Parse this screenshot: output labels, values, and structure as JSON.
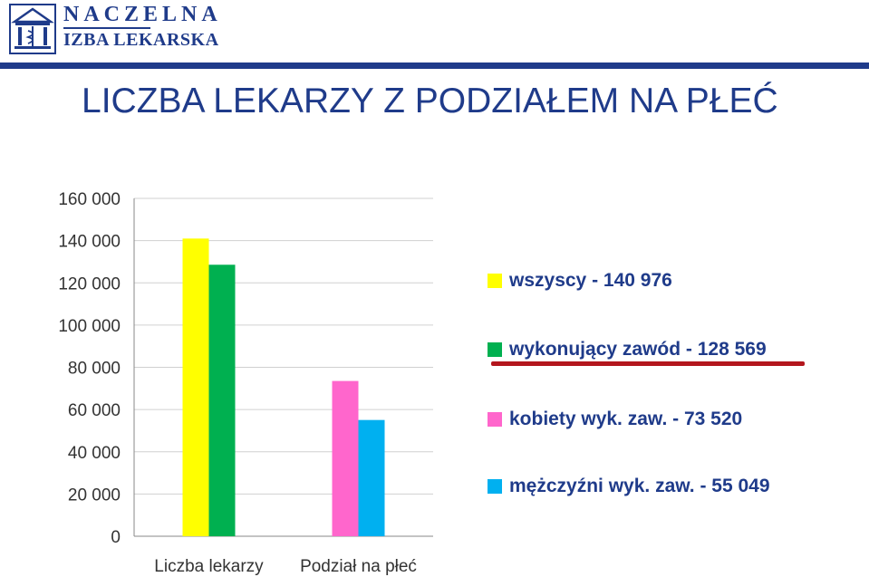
{
  "header": {
    "logo_line1": "NACZELNA",
    "logo_line2": "IZBA LEKARSKA",
    "brand_color": "#1f3b8a"
  },
  "title": "LICZBA LEKARZY Z PODZIAŁEM NA PŁEĆ",
  "chart_data": {
    "type": "bar",
    "categories": [
      "Liczba lekarzy",
      "Podział na płeć"
    ],
    "series": [
      {
        "name": "wszyscy - 140 976",
        "color": "#ffff00",
        "values": [
          140976,
          null
        ]
      },
      {
        "name": "wykonujący zawód - 128 569",
        "color": "#00b050",
        "values": [
          128569,
          null
        ]
      },
      {
        "name": "kobiety wyk. zaw. - 73 520",
        "color": "#ff66cc",
        "values": [
          null,
          73520
        ]
      },
      {
        "name": "mężczyźni wyk. zaw. - 55 049",
        "color": "#00b0f0",
        "values": [
          null,
          55049
        ]
      }
    ],
    "ylim": [
      0,
      160000
    ],
    "yticks": [
      0,
      20000,
      40000,
      60000,
      80000,
      100000,
      120000,
      140000,
      160000
    ],
    "ytick_labels": [
      "0",
      "20 000",
      "40 000",
      "60 000",
      "80 000",
      "100 000",
      "120 000",
      "140 000",
      "160 000"
    ],
    "grid": true,
    "legend_position": "right",
    "highlight_color": "#b3161d"
  }
}
